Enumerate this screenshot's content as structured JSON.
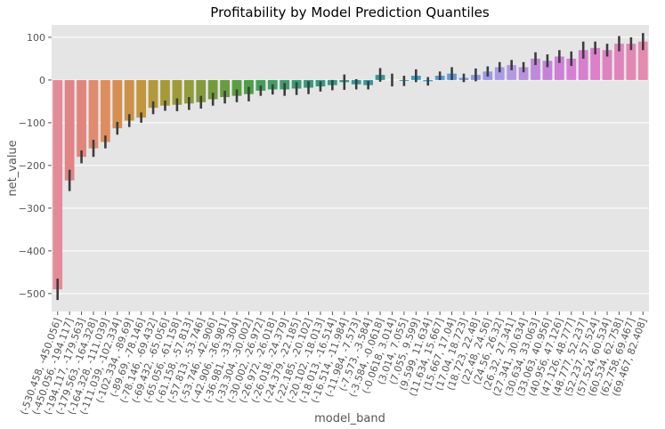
{
  "chart_data": {
    "type": "bar",
    "title": "Profitability by Model Prediction Quantiles",
    "xlabel": "model_band",
    "ylabel": "net_value",
    "categories": [
      "(-530.458, -450.056]",
      "(-450.056, -194.117]",
      "(-194.117, -179.563]",
      "(-179.563, -164.328]",
      "(-164.328, -111.039]",
      "(-111.039, -102.334]",
      "(-102.334, -89.69]",
      "(-89.69, -78.146]",
      "(-78.146, -69.432]",
      "(-69.432, -65.056]",
      "(-65.056, -61.158]",
      "(-61.158, -57.813]",
      "(-57.813, -53.746]",
      "(-53.746, -42.906]",
      "(-42.906, -36.981]",
      "(-36.981, -33.304]",
      "(-33.304, -30.002]",
      "(-30.002, -26.972]",
      "(-26.972, -26.018]",
      "(-26.018, -24.379]",
      "(-24.379, -22.185]",
      "(-22.185, -20.102]",
      "(-20.102, -18.013]",
      "(-18.013, -16.514]",
      "(-16.514, -11.984]",
      "(-11.984, -7.573]",
      "(-7.573, -3.584]",
      "(-3.584, -0.0618]",
      "(-0.0618, 3.014]",
      "(3.014, 7.055]",
      "(7.055, 9.599]",
      "(9.599, 11.634]",
      "(11.634, 15.667]",
      "(15.667, 17.04]",
      "(17.04, 18.723]",
      "(18.723, 22.48]",
      "(22.48, 24.56]",
      "(24.56, 26.32]",
      "(26.32, 27.341]",
      "(27.341, 30.634]",
      "(30.634, 33.063]",
      "(33.063, 40.956]",
      "(40.956, 47.126]",
      "(47.126, 48.777]",
      "(48.777, 52.237]",
      "(52.237, 57.524]",
      "(57.524, 60.534]",
      "(60.534, 62.758]",
      "(62.758, 69.467]",
      "(69.467, 82.408]"
    ],
    "values": [
      -490,
      -235,
      -180,
      -160,
      -145,
      -113,
      -95,
      -88,
      -65,
      -60,
      -58,
      -55,
      -52,
      -45,
      -40,
      -37,
      -33,
      -25,
      -22,
      -22,
      -20,
      -18,
      -15,
      -12,
      -5,
      -10,
      -12,
      12,
      0,
      -2,
      10,
      -3,
      10,
      15,
      5,
      12,
      20,
      30,
      35,
      30,
      50,
      45,
      55,
      50,
      70,
      75,
      70,
      85,
      85,
      90
    ],
    "errors": [
      25,
      25,
      15,
      20,
      15,
      15,
      15,
      12,
      15,
      12,
      15,
      15,
      15,
      15,
      15,
      15,
      17,
      12,
      12,
      15,
      15,
      15,
      12,
      12,
      18,
      12,
      10,
      16,
      15,
      12,
      15,
      10,
      10,
      15,
      10,
      15,
      12,
      12,
      12,
      12,
      15,
      15,
      15,
      17,
      20,
      15,
      15,
      18,
      15,
      20
    ],
    "colors": [
      "hsl(352,62%,72%)",
      "hsl(358,62%,70%)",
      "hsl(6,62%,68%)",
      "hsl(14,64%,66%)",
      "hsl(22,66%,62%)",
      "hsl(28,62%,58%)",
      "hsl(34,56%,54%)",
      "hsl(40,52%,50%)",
      "hsl(46,50%,47%)",
      "hsl(52,50%,44%)",
      "hsl(58,48%,42%)",
      "hsl(66,46%,42%)",
      "hsl(74,44%,42%)",
      "hsl(84,44%,42%)",
      "hsl(94,42%,43%)",
      "hsl(104,40%,44%)",
      "hsl(116,38%,45%)",
      "hsl(130,38%,45%)",
      "hsl(142,40%,44%)",
      "hsl(150,42%,43%)",
      "hsl(156,44%,42%)",
      "hsl(160,46%,41%)",
      "hsl(164,48%,41%)",
      "hsl(168,48%,41%)",
      "hsl(172,48%,41%)",
      "hsl(176,48%,41%)",
      "hsl(180,48%,41%)",
      "hsl(184,50%,42%)",
      "hsl(188,52%,44%)",
      "hsl(192,54%,46%)",
      "hsl(196,56%,50%)",
      "hsl(200,58%,54%)",
      "hsl(206,60%,58%)",
      "hsl(212,62%,62%)",
      "hsl(222,62%,68%)",
      "hsl(232,62%,72%)",
      "hsl(242,60%,75%)",
      "hsl(252,58%,75%)",
      "hsl(262,56%,74%)",
      "hsl(270,54%,72%)",
      "hsl(278,52%,70%)",
      "hsl(286,52%,68%)",
      "hsl(294,52%,67%)",
      "hsl(300,52%,67%)",
      "hsl(306,54%,67%)",
      "hsl(312,56%,68%)",
      "hsl(318,58%,69%)",
      "hsl(324,60%,70%)",
      "hsl(330,62%,71%)",
      "hsl(336,62%,72%)"
    ],
    "ylim": [
      -542,
      129
    ],
    "yticks": [
      {
        "value": 100,
        "label": "100"
      },
      {
        "value": 0,
        "label": "0"
      },
      {
        "value": -100,
        "label": "−100"
      },
      {
        "value": -200,
        "label": "−200"
      },
      {
        "value": -300,
        "label": "−300"
      },
      {
        "value": -400,
        "label": "−400"
      },
      {
        "value": -500,
        "label": "−500"
      }
    ],
    "grid": true
  }
}
